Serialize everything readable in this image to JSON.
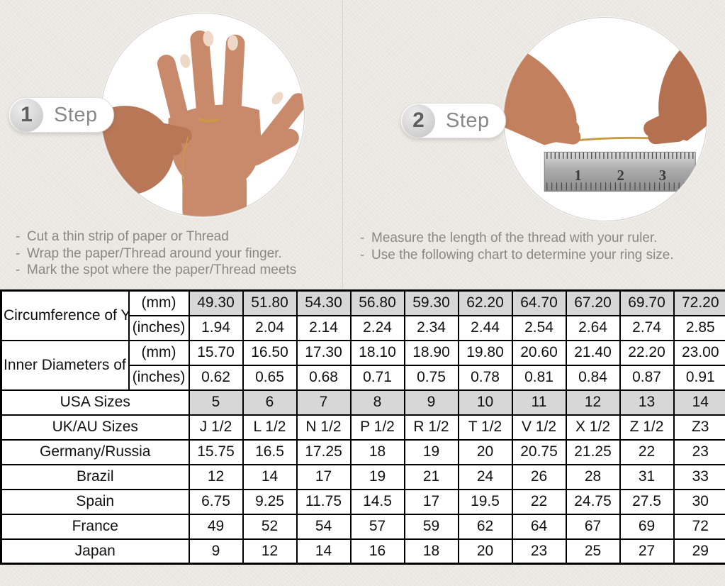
{
  "colors": {
    "bg": "#ebe8e3",
    "divider": "#d6d3ce",
    "shade": "#d7d7d7",
    "gold": "#c59a44",
    "ink": "#111111",
    "muted": "#8b8784"
  },
  "ui": {
    "bullet": "-"
  },
  "steps": [
    {
      "number": "1",
      "label": "Step",
      "instructions": [
        "Cut a thin strip of paper or Thread",
        "Wrap the paper/Thread around your finger.",
        "Mark the spot where the paper/Thread meets"
      ]
    },
    {
      "number": "2",
      "label": "Step",
      "instructions": [
        "Measure the length of the thread with your ruler.",
        "Use the following chart to determine your ring size."
      ]
    }
  ],
  "photos": {
    "step1_name": "hand-with-thread-around-ring-finger-photo",
    "step2_name": "measuring-thread-length-with-ruler-photo",
    "ruler_numbers": [
      "1",
      "2",
      "3"
    ]
  },
  "table": {
    "groups": [
      {
        "label": "Circumference of Your Finger",
        "rows": [
          {
            "unit": "(mm)",
            "shaded": true,
            "values": [
              "49.30",
              "51.80",
              "54.30",
              "56.80",
              "59.30",
              "62.20",
              "64.70",
              "67.20",
              "69.70",
              "72.20"
            ]
          },
          {
            "unit": "(inches)",
            "shaded": false,
            "values": [
              "1.94",
              "2.04",
              "2.14",
              "2.24",
              "2.34",
              "2.44",
              "2.54",
              "2.64",
              "2.74",
              "2.85"
            ]
          }
        ]
      },
      {
        "label": "Inner Diameters of Rings",
        "rows": [
          {
            "unit": "(mm)",
            "shaded": false,
            "values": [
              "15.70",
              "16.50",
              "17.30",
              "18.10",
              "18.90",
              "19.80",
              "20.60",
              "21.40",
              "22.20",
              "23.00"
            ]
          },
          {
            "unit": "(inches)",
            "shaded": false,
            "values": [
              "0.62",
              "0.65",
              "0.68",
              "0.71",
              "0.75",
              "0.78",
              "0.81",
              "0.84",
              "0.87",
              "0.91"
            ]
          }
        ]
      }
    ],
    "size_rows": [
      {
        "label": "USA Sizes",
        "shaded": true,
        "values": [
          "5",
          "6",
          "7",
          "8",
          "9",
          "10",
          "11",
          "12",
          "13",
          "14"
        ]
      },
      {
        "label": "UK/AU Sizes",
        "shaded": false,
        "values": [
          "J 1/2",
          "L 1/2",
          "N 1/2",
          "P 1/2",
          "R 1/2",
          "T 1/2",
          "V 1/2",
          "X 1/2",
          "Z 1/2",
          "Z3"
        ]
      },
      {
        "label": "Germany/Russia",
        "shaded": false,
        "values": [
          "15.75",
          "16.5",
          "17.25",
          "18",
          "19",
          "20",
          "20.75",
          "21.25",
          "22",
          "23"
        ]
      },
      {
        "label": "Brazil",
        "shaded": false,
        "values": [
          "12",
          "14",
          "17",
          "19",
          "21",
          "24",
          "26",
          "28",
          "31",
          "33"
        ]
      },
      {
        "label": "Spain",
        "shaded": false,
        "values": [
          "6.75",
          "9.25",
          "11.75",
          "14.5",
          "17",
          "19.5",
          "22",
          "24.75",
          "27.5",
          "30"
        ]
      },
      {
        "label": "France",
        "shaded": false,
        "values": [
          "49",
          "52",
          "54",
          "57",
          "59",
          "62",
          "64",
          "67",
          "69",
          "72"
        ]
      },
      {
        "label": "Japan",
        "shaded": false,
        "values": [
          "9",
          "12",
          "14",
          "16",
          "18",
          "20",
          "23",
          "25",
          "27",
          "29"
        ]
      }
    ]
  }
}
